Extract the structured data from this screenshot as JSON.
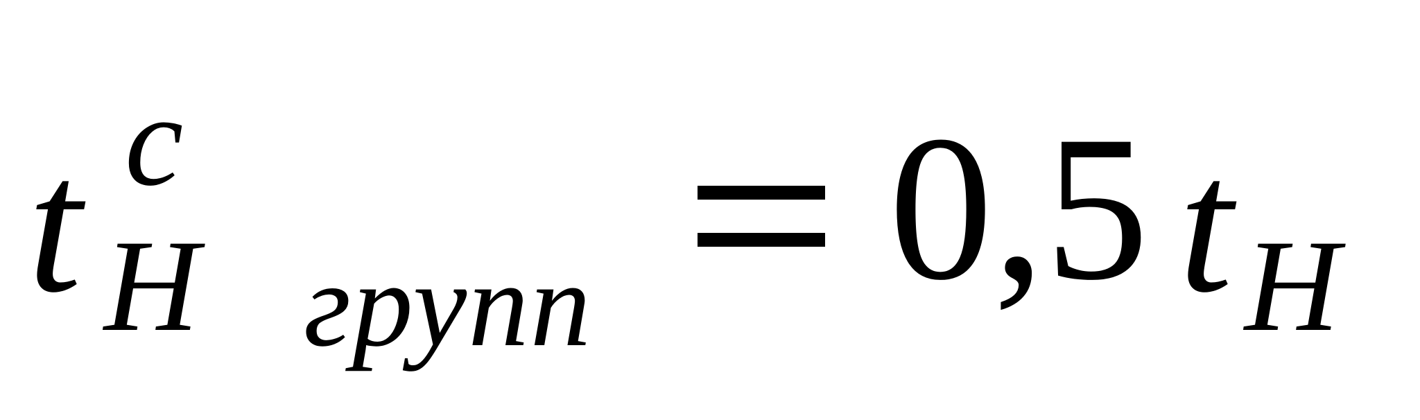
{
  "formula": {
    "lhs": {
      "symbol": "t",
      "superscript": "c",
      "subscript_letter": "Н",
      "subscript_word": "групп"
    },
    "operator": "=",
    "rhs": {
      "coefficient": "0,5",
      "symbol": "t",
      "subscript_letter": "Н"
    }
  }
}
